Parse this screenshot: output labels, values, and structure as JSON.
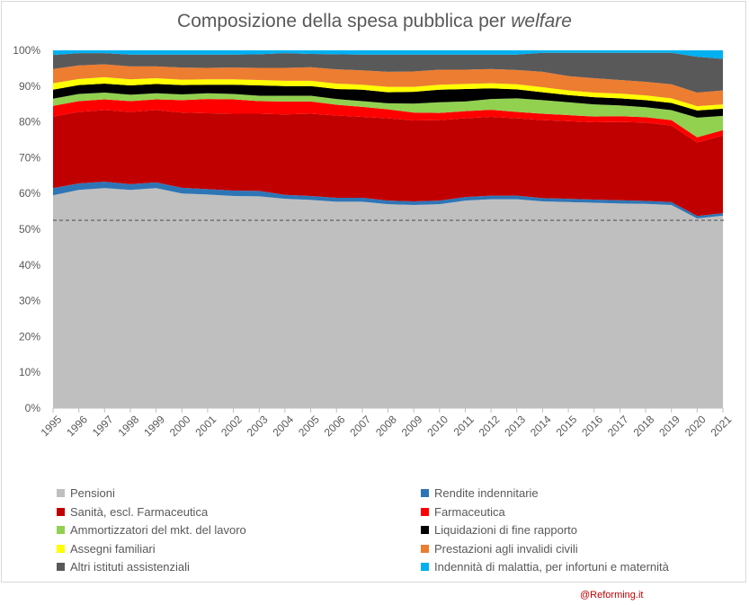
{
  "title_prefix": "Composizione della spesa pubblica per ",
  "title_emph": "welfare",
  "watermark": "@Reforming.it",
  "chart_data": {
    "type": "area",
    "stacked": true,
    "x": [
      "1995",
      "1996",
      "1997",
      "1998",
      "1999",
      "2000",
      "2001",
      "2002",
      "2003",
      "2004",
      "2005",
      "2006",
      "2007",
      "2008",
      "2009",
      "2010",
      "2011",
      "2012",
      "2013",
      "2014",
      "2015",
      "2016",
      "2017",
      "2018",
      "2019",
      "2020",
      "2021"
    ],
    "ylim": [
      0,
      100
    ],
    "yticks": [
      "0%",
      "10%",
      "20%",
      "30%",
      "40%",
      "50%",
      "60%",
      "70%",
      "80%",
      "90%",
      "100%"
    ],
    "reference_line": {
      "y": 52.5,
      "style": "dashed"
    },
    "grid": false,
    "legend_position": "bottom",
    "series": [
      {
        "name": "Pensioni",
        "color": "#bfbfbf",
        "values": [
          59.5,
          61.0,
          61.5,
          61.0,
          61.5,
          60.0,
          59.7,
          59.3,
          59.2,
          58.5,
          58.2,
          57.7,
          57.7,
          57.0,
          56.8,
          57.0,
          58.0,
          58.4,
          58.4,
          57.8,
          57.6,
          57.4,
          57.2,
          57.1,
          56.8,
          53.0,
          53.8
        ]
      },
      {
        "name": "Rendite indennitarie",
        "color": "#2e75b6",
        "values": [
          2.0,
          1.8,
          1.8,
          1.6,
          1.6,
          1.6,
          1.5,
          1.5,
          1.5,
          1.1,
          1.1,
          1.1,
          1.1,
          1.0,
          1.0,
          1.0,
          1.0,
          1.0,
          1.0,
          0.9,
          0.9,
          0.9,
          0.9,
          0.8,
          0.8,
          0.7,
          0.7
        ]
      },
      {
        "name": "Sanità, escl. Farmaceutica",
        "color": "#c00000",
        "values": [
          20.0,
          20.0,
          20.0,
          20.2,
          20.2,
          21.0,
          21.2,
          21.5,
          21.6,
          22.5,
          23.0,
          23.0,
          22.6,
          23.0,
          22.6,
          22.5,
          22.0,
          22.0,
          21.6,
          21.8,
          21.7,
          21.6,
          21.9,
          21.9,
          21.4,
          20.5,
          21.7
        ]
      },
      {
        "name": "Farmaceutica",
        "color": "#ff0000",
        "values": [
          3.0,
          3.0,
          3.0,
          3.0,
          3.0,
          3.5,
          4.0,
          4.0,
          3.5,
          3.6,
          3.4,
          3.0,
          2.8,
          2.5,
          2.2,
          2.0,
          2.0,
          2.0,
          1.8,
          1.8,
          1.7,
          1.6,
          1.6,
          1.5,
          1.5,
          1.5,
          1.5
        ]
      },
      {
        "name": "Ammortizzatori del mkt. del lavoro",
        "color": "#92d050",
        "values": [
          2.0,
          2.0,
          1.9,
          1.8,
          1.7,
          1.6,
          1.6,
          1.5,
          1.5,
          1.6,
          1.6,
          1.6,
          1.6,
          1.7,
          2.5,
          3.0,
          2.7,
          3.0,
          3.8,
          3.8,
          3.6,
          3.4,
          3.0,
          2.8,
          2.8,
          5.5,
          4.0
        ]
      },
      {
        "name": "Liquidazioni di fine rapporto",
        "color": "#000000",
        "values": [
          2.5,
          2.5,
          2.5,
          2.6,
          2.6,
          2.6,
          2.4,
          2.6,
          2.9,
          2.7,
          2.7,
          2.8,
          3.2,
          3.1,
          3.3,
          3.5,
          3.5,
          3.0,
          2.5,
          2.2,
          2.0,
          2.0,
          2.0,
          2.0,
          2.0,
          2.0,
          2.0
        ]
      },
      {
        "name": "Assegni familiari",
        "color": "#ffff00",
        "values": [
          1.8,
          1.7,
          1.8,
          1.7,
          1.6,
          1.5,
          1.5,
          1.5,
          1.5,
          1.5,
          1.5,
          1.5,
          1.4,
          1.5,
          1.4,
          1.4,
          1.4,
          1.4,
          1.4,
          1.4,
          1.3,
          1.3,
          1.3,
          1.3,
          1.3,
          1.2,
          1.2
        ]
      },
      {
        "name": "Prestazioni agli invalidi civili",
        "color": "#ed7d31",
        "values": [
          4.0,
          3.8,
          3.6,
          3.6,
          3.3,
          3.4,
          3.2,
          3.3,
          3.4,
          3.6,
          3.8,
          4.0,
          4.0,
          4.2,
          4.3,
          4.2,
          4.0,
          4.0,
          4.0,
          4.3,
          4.0,
          4.0,
          3.8,
          3.8,
          3.9,
          3.8,
          3.9
        ]
      },
      {
        "name": "Altri istituti assistenziali",
        "color": "#595959",
        "values": [
          3.9,
          3.4,
          3.1,
          3.3,
          3.3,
          3.6,
          3.7,
          3.6,
          3.8,
          4.1,
          3.7,
          4.2,
          4.4,
          4.8,
          4.7,
          4.2,
          4.2,
          4.0,
          4.3,
          5.3,
          6.5,
          7.1,
          7.6,
          8.1,
          8.8,
          10.0,
          8.8
        ]
      },
      {
        "name": "Indennità di malattia, per infortuni e maternità",
        "color": "#00b0f0",
        "values": [
          1.3,
          0.8,
          0.8,
          1.2,
          1.2,
          1.2,
          1.2,
          1.2,
          1.3,
          0.8,
          1.0,
          1.1,
          1.2,
          1.2,
          1.2,
          1.2,
          1.2,
          1.2,
          1.2,
          0.7,
          0.7,
          0.7,
          0.7,
          0.7,
          0.7,
          1.8,
          2.4
        ]
      }
    ]
  }
}
